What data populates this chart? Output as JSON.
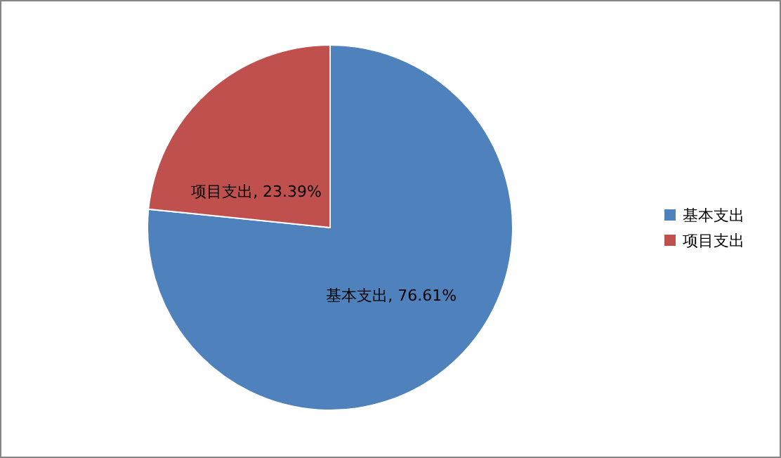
{
  "chart_data": {
    "type": "pie",
    "categories": [
      "基本支出",
      "项目支出"
    ],
    "values": [
      76.61,
      23.39
    ],
    "colors": [
      "#4f81bd",
      "#c0504d"
    ],
    "value_labels": [
      "基本支出, 76.61%",
      "项目支出, 23.39%"
    ],
    "legend": "right"
  }
}
